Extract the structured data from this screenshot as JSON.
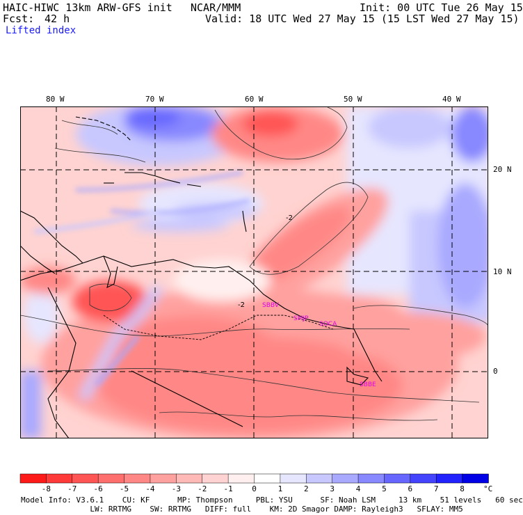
{
  "header": {
    "model_title": "HAIC-HIWC 13km ARW-GFS init",
    "org": "NCAR/MMM",
    "init": "Init: 00 UTC Tue 26 May 15",
    "fcst_label": "Fcst:",
    "fcst_value": "42 h",
    "valid": "Valid: 18 UTC Wed 27 May 15 (15 LST Wed 27 May 15)",
    "field": "Lifted index"
  },
  "axes": {
    "lon_labels": [
      "80 W",
      "70 W",
      "60 W",
      "50 W",
      "40 W"
    ],
    "lat_labels": [
      "20 N",
      "10 N",
      "0"
    ]
  },
  "stations": [
    "SBBV",
    "SMJP",
    "SOCA",
    "SBBE"
  ],
  "contour_labels": [
    "-2",
    "-2"
  ],
  "colorbar": {
    "tick_labels": [
      "-8",
      "-7",
      "-6",
      "-5",
      "-4",
      "-3",
      "-2",
      "-1",
      "0",
      "1",
      "2",
      "3",
      "4",
      "5",
      "6",
      "7",
      "8"
    ],
    "unit": "°C",
    "colors": [
      "#ff1a1a",
      "#ff3a38",
      "#ff5555",
      "#ff6f6d",
      "#ff8886",
      "#ffa19f",
      "#ffbab8",
      "#ffd3d1",
      "#fff0ef",
      "#ffffff",
      "#e6e6ff",
      "#c8c8ff",
      "#a9a9ff",
      "#8888ff",
      "#6767ff",
      "#4444ff",
      "#2222ff",
      "#0000e6"
    ]
  },
  "footer": {
    "line1": "Model Info: V3.6.1    CU: KF      MP: Thompson     PBL: YSU      SF: Noah LSM     13 km    51 levels   60 sec",
    "line2": "               LW: RRTMG    SW: RRTMG   DIFF: full    KM: 2D Smagor DAMP: Rayleigh3   SFLAY: MM5"
  }
}
